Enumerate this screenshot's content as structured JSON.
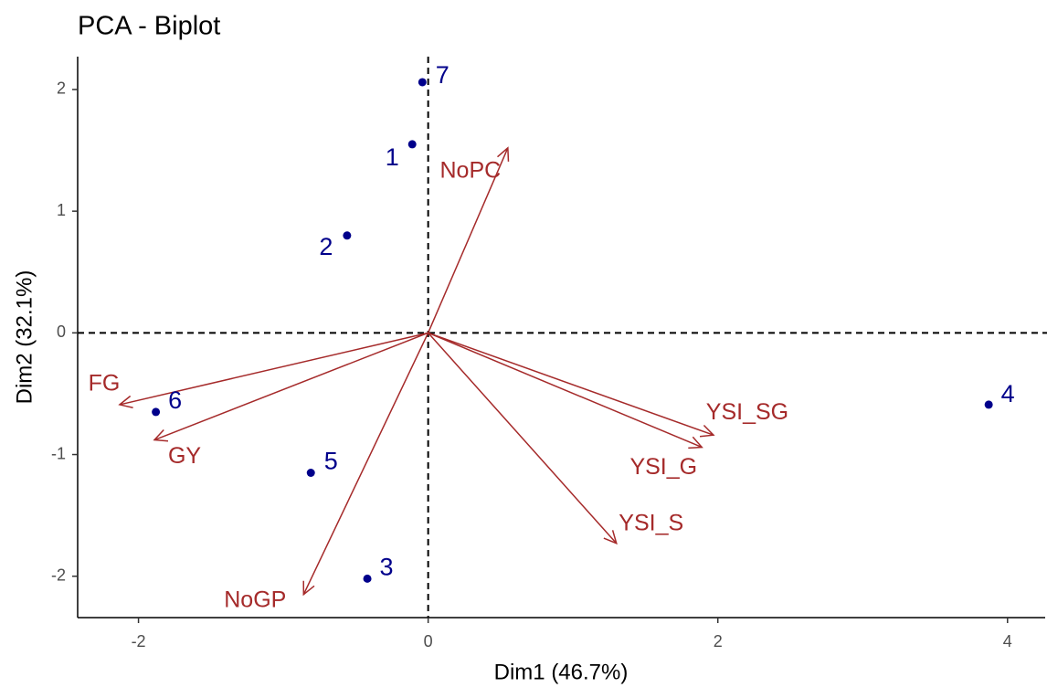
{
  "chart_data": {
    "type": "biplot",
    "title": "PCA - Biplot",
    "x_label": "Dim1 (46.7%)",
    "y_label": "Dim2 (32.1%)",
    "xlim": [
      -2.42,
      4.26
    ],
    "ylim": [
      -2.34,
      2.27
    ],
    "xticks": [
      -2,
      0,
      2,
      4
    ],
    "yticks": [
      -2,
      -1,
      0,
      1,
      2
    ],
    "zero_lines": true,
    "points": {
      "color": "#00008b",
      "labels": [
        "7",
        "1",
        "2",
        "6",
        "5",
        "3",
        "4"
      ],
      "x": [
        -0.04,
        -0.11,
        -0.56,
        -1.88,
        -0.81,
        -0.42,
        3.87
      ],
      "y": [
        2.06,
        1.55,
        0.8,
        -0.65,
        -1.15,
        -2.02,
        -0.59
      ]
    },
    "variables": {
      "color": "#a52a2a",
      "labels": [
        "NoPC",
        "FG",
        "GY",
        "NoGP",
        "YSI_SG",
        "YSI_G",
        "YSI_S"
      ],
      "x": [
        0.55,
        -2.13,
        -1.89,
        -0.86,
        1.97,
        1.89,
        1.3
      ],
      "y": [
        1.52,
        -0.59,
        -0.88,
        -2.15,
        -0.84,
        -0.94,
        -1.73
      ]
    }
  }
}
